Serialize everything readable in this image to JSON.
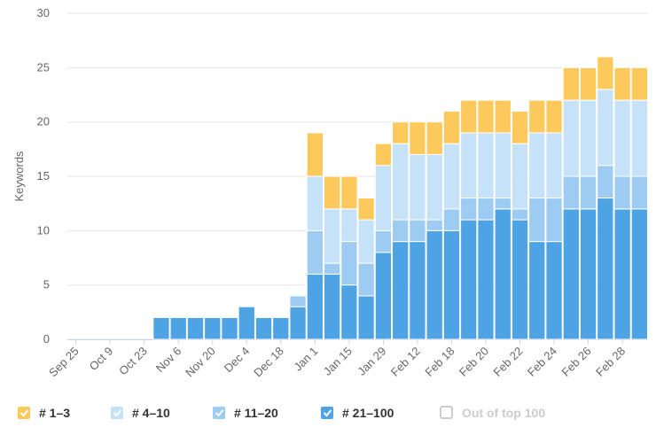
{
  "chart_data": {
    "type": "stacked_bar",
    "y_axis_label": "Keywords",
    "categories": [
      "Sep 25",
      null,
      "Oct 9",
      null,
      "Oct 23",
      null,
      "Nov 6",
      null,
      "Nov 20",
      null,
      "Dec 4",
      null,
      "Dec 18",
      null,
      "Jan 1",
      null,
      "Jan 15",
      null,
      "Jan 29",
      null,
      "Feb 12",
      null,
      "Feb 18",
      null,
      "Feb 20",
      null,
      "Feb 22",
      null,
      "Feb 24",
      null,
      "Feb 26",
      null,
      "Feb 28",
      null
    ],
    "series": [
      {
        "name": "# 21–100",
        "color": "#4ea3e5",
        "values": [
          0,
          0,
          0,
          0,
          0,
          2,
          2,
          2,
          2,
          2,
          3,
          2,
          2,
          3,
          6,
          6,
          5,
          4,
          8,
          9,
          9,
          10,
          10,
          11,
          11,
          12,
          11,
          9,
          9,
          12,
          12,
          13,
          12,
          12
        ]
      },
      {
        "name": "# 11–20",
        "color": "#9dcbf2",
        "values": [
          0,
          0,
          0,
          0,
          0,
          0,
          0,
          0,
          0,
          0,
          0,
          0,
          0,
          1,
          4,
          1,
          4,
          3,
          2,
          2,
          2,
          1,
          2,
          2,
          2,
          1,
          1,
          4,
          4,
          3,
          3,
          3,
          3,
          3
        ]
      },
      {
        "name": "# 4–10",
        "color": "#c6e2f8",
        "values": [
          0,
          0,
          0,
          0,
          0,
          0,
          0,
          0,
          0,
          0,
          0,
          0,
          0,
          0,
          5,
          5,
          3,
          4,
          6,
          7,
          6,
          6,
          6,
          6,
          6,
          6,
          6,
          6,
          6,
          7,
          7,
          7,
          7,
          7
        ]
      },
      {
        "name": "# 1–3",
        "color": "#fec95c",
        "values": [
          0,
          0,
          0,
          0,
          0,
          0,
          0,
          0,
          0,
          0,
          0,
          0,
          0,
          0,
          4,
          3,
          3,
          2,
          2,
          2,
          3,
          3,
          3,
          3,
          3,
          3,
          3,
          3,
          3,
          3,
          3,
          3,
          3,
          3
        ]
      }
    ],
    "legend_order": [
      3,
      2,
      1,
      0
    ],
    "legend_extra": [
      {
        "name": "Out of top 100",
        "color": "#cccccc",
        "hidden": true
      }
    ],
    "ylim": [
      0,
      30
    ],
    "yticks": [
      0,
      5,
      10,
      15,
      20,
      25,
      30
    ],
    "grid": true
  }
}
